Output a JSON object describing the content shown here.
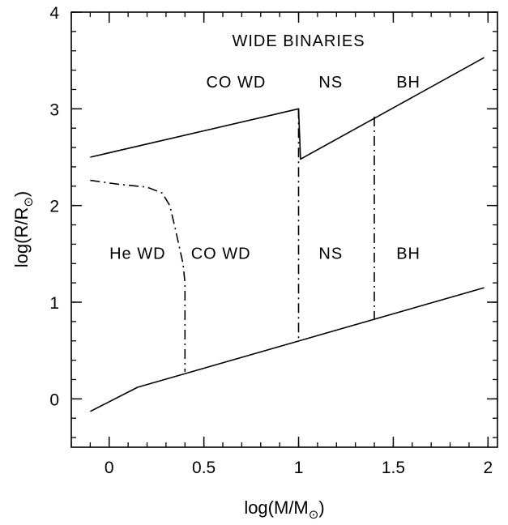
{
  "chart_data": {
    "type": "line",
    "title": "",
    "xlabel_parts": {
      "pre": "log(M/M",
      "sub": "⊙",
      "post": ")"
    },
    "ylabel_parts": {
      "pre": "log(R/R",
      "sub": "⊙",
      "post": ")"
    },
    "xlim": [
      -0.2,
      2.05
    ],
    "ylim": [
      -0.5,
      4
    ],
    "xticks": [
      {
        "value": 0,
        "label": "0"
      },
      {
        "value": 0.5,
        "label": "0.5"
      },
      {
        "value": 1,
        "label": "1"
      },
      {
        "value": 1.5,
        "label": "1.5"
      },
      {
        "value": 2,
        "label": "2"
      }
    ],
    "yticks": [
      {
        "value": 0,
        "label": "0"
      },
      {
        "value": 1,
        "label": "1"
      },
      {
        "value": 2,
        "label": "2"
      },
      {
        "value": 3,
        "label": "3"
      },
      {
        "value": 4,
        "label": "4"
      }
    ],
    "minor_step_x": 0.1,
    "minor_step_y": 0.2,
    "grid": false,
    "series": [
      {
        "style": "solid",
        "x": [
          -0.1,
          1.0,
          1.01,
          1.98
        ],
        "y": [
          2.5,
          3.0,
          2.48,
          3.53
        ]
      },
      {
        "style": "solid",
        "x": [
          -0.1,
          0.15,
          1.98
        ],
        "y": [
          -0.13,
          0.12,
          1.15
        ]
      },
      {
        "style": "dashdot",
        "x": [
          -0.1,
          0.05,
          0.2,
          0.28,
          0.32,
          0.35,
          0.39,
          0.4,
          0.4
        ],
        "y": [
          2.26,
          2.22,
          2.19,
          2.13,
          2.0,
          1.75,
          1.4,
          1.2,
          0.28
        ]
      },
      {
        "style": "dashdot",
        "x": [
          1.0,
          1.0
        ],
        "y": [
          3.0,
          0.6
        ]
      },
      {
        "style": "dashdot",
        "x": [
          1.4,
          1.4
        ],
        "y": [
          2.92,
          0.82
        ]
      }
    ],
    "annotations": [
      {
        "text": "WIDE BINARIES",
        "x": 1.0,
        "y": 3.65
      },
      {
        "text": "CO WD",
        "x": 0.67,
        "y": 3.22
      },
      {
        "text": "NS",
        "x": 1.17,
        "y": 3.22
      },
      {
        "text": "BH",
        "x": 1.58,
        "y": 3.22
      },
      {
        "text": "He WD",
        "x": 0.15,
        "y": 1.45
      },
      {
        "text": "CO WD",
        "x": 0.59,
        "y": 1.45
      },
      {
        "text": "NS",
        "x": 1.17,
        "y": 1.45
      },
      {
        "text": "BH",
        "x": 1.58,
        "y": 1.45
      }
    ]
  }
}
